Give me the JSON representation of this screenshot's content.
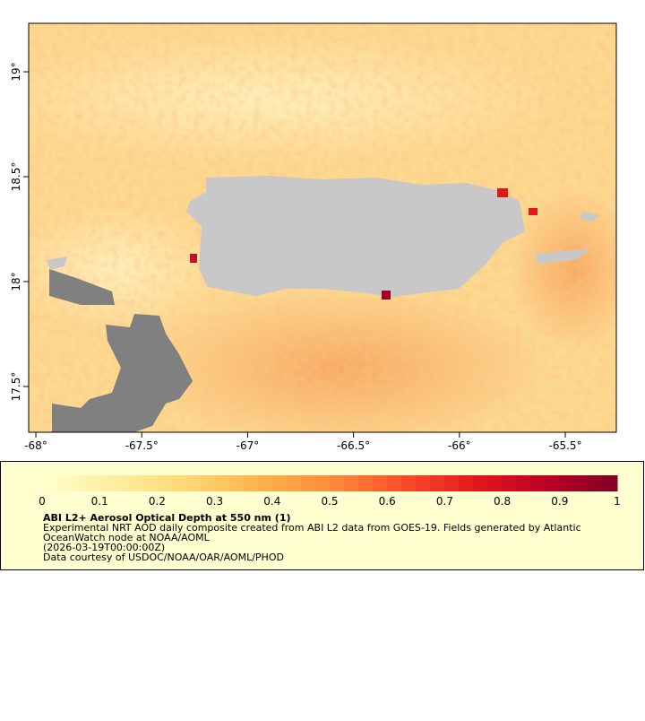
{
  "map": {
    "xlim": [
      -68.034,
      -65.259
    ],
    "ylim": [
      17.282,
      19.231
    ],
    "xticks": [
      {
        "value": -68,
        "label": "-68°"
      },
      {
        "value": -67.5,
        "label": "-67.5°"
      },
      {
        "value": -67,
        "label": "-67°"
      },
      {
        "value": -66.5,
        "label": "-66.5°"
      },
      {
        "value": -66,
        "label": "-66°"
      },
      {
        "value": -65.5,
        "label": "-65.5°"
      }
    ],
    "yticks": [
      {
        "value": 17.5,
        "label": "17.5°"
      },
      {
        "value": 18,
        "label": "18°"
      },
      {
        "value": 18.5,
        "label": "18.5°"
      },
      {
        "value": 19,
        "label": "19°"
      }
    ]
  },
  "legend": {
    "title": "ABI L2+ Aerosol Optical Depth at 550 nm (1)",
    "lines": [
      "Experimental NRT AOD daily composite created from ABI L2 data from GOES-19. Fields generated by Atlantic",
      "OceanWatch node at NOAA/AOML",
      "(2026-03-19T00:00:00Z)",
      "Data courtesy of USDOC/NOAA/OAR/AOML/PHOD"
    ],
    "colorbar": {
      "lim": [
        0,
        1
      ],
      "ticks": [
        0,
        0.1,
        0.2,
        0.3,
        0.4,
        0.5,
        0.6,
        0.7,
        0.8,
        0.9,
        1
      ],
      "colormap": [
        "#ffffcc",
        "#ffeda0",
        "#fed976",
        "#feb24c",
        "#fd8d3c",
        "#fc4e2a",
        "#e31a1c",
        "#bd0026",
        "#800026"
      ]
    }
  }
}
